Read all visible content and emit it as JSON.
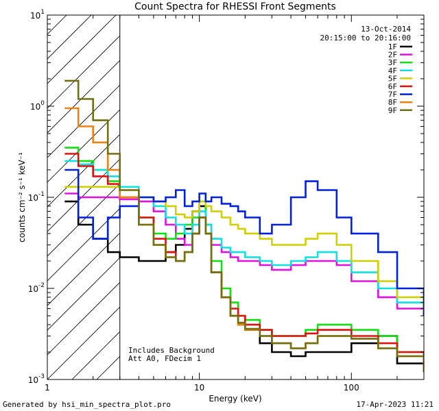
{
  "chart_data": {
    "type": "line",
    "title": "Count Spectra for RHESSI Front Segments",
    "xlabel": "Energy (keV)",
    "ylabel": "counts cm⁻² s⁻¹ keV⁻¹",
    "xscale": "log",
    "yscale": "log",
    "xlim": [
      1,
      300
    ],
    "ylim": [
      0.001,
      10
    ],
    "x_tick_labels": [
      {
        "value": 1,
        "label": "1"
      },
      {
        "value": 10,
        "label": "10"
      },
      {
        "value": 100,
        "label": "100"
      }
    ],
    "y_tick_labels": [
      {
        "value": 0.001,
        "base": "10",
        "exp": "-3"
      },
      {
        "value": 0.01,
        "base": "10",
        "exp": "-2"
      },
      {
        "value": 0.1,
        "base": "10",
        "exp": "-1"
      },
      {
        "value": 1,
        "base": "10",
        "exp": "0"
      },
      {
        "value": 10,
        "base": "10",
        "exp": "1"
      }
    ],
    "hatched_region": {
      "xmin": 1.0,
      "xmax": 3.0,
      "meaning": "excluded low-energy region"
    },
    "header_lines": [
      "13-Oct-2014",
      "20:15:00 to 20:16:00"
    ],
    "annotations": [
      "Includes Background",
      "Att A0, FDecim 1"
    ],
    "legend_position": "top-right",
    "series": [
      {
        "name": "1F",
        "color": "#000000",
        "x": [
          1.3,
          1.6,
          2,
          2.5,
          3,
          4,
          5,
          6,
          7,
          8,
          9,
          10,
          11,
          12,
          14,
          16,
          18,
          20,
          25,
          30,
          40,
          50,
          60,
          80,
          100,
          150,
          200,
          300
        ],
        "values": [
          0.09,
          0.05,
          0.035,
          0.025,
          0.022,
          0.02,
          0.02,
          0.025,
          0.03,
          0.045,
          0.07,
          0.08,
          0.04,
          0.015,
          0.008,
          0.005,
          0.004,
          0.0035,
          0.0025,
          0.002,
          0.0018,
          0.002,
          0.002,
          0.002,
          0.0025,
          0.003,
          0.0015,
          0.0012
        ]
      },
      {
        "name": "2F",
        "color": "#e010e0",
        "x": [
          1.3,
          1.6,
          2,
          2.5,
          3,
          4,
          5,
          6,
          7,
          8,
          9,
          10,
          11,
          12,
          14,
          16,
          18,
          20,
          25,
          30,
          40,
          50,
          60,
          80,
          100,
          150,
          200,
          300
        ],
        "values": [
          0.11,
          0.1,
          0.1,
          0.1,
          0.095,
          0.09,
          0.07,
          0.05,
          0.035,
          0.03,
          0.04,
          0.06,
          0.05,
          0.03,
          0.025,
          0.022,
          0.02,
          0.02,
          0.018,
          0.016,
          0.018,
          0.02,
          0.02,
          0.018,
          0.012,
          0.008,
          0.006,
          0.005
        ]
      },
      {
        "name": "3F",
        "color": "#10e010",
        "x": [
          1.3,
          1.6,
          2,
          2.5,
          3,
          4,
          5,
          6,
          7,
          8,
          9,
          10,
          11,
          12,
          14,
          16,
          18,
          20,
          25,
          30,
          40,
          50,
          60,
          80,
          100,
          150,
          200,
          300
        ],
        "values": [
          0.35,
          0.25,
          0.2,
          0.15,
          0.1,
          0.06,
          0.04,
          0.035,
          0.04,
          0.05,
          0.06,
          0.09,
          0.05,
          0.02,
          0.01,
          0.007,
          0.005,
          0.0045,
          0.0035,
          0.003,
          0.003,
          0.0035,
          0.004,
          0.004,
          0.0035,
          0.003,
          0.002,
          0.0015
        ]
      },
      {
        "name": "4F",
        "color": "#10e0e0",
        "x": [
          1.3,
          1.6,
          2,
          2.5,
          3,
          4,
          5,
          6,
          7,
          8,
          9,
          10,
          11,
          12,
          14,
          16,
          18,
          20,
          25,
          30,
          40,
          50,
          60,
          80,
          100,
          150,
          200,
          300
        ],
        "values": [
          0.25,
          0.23,
          0.2,
          0.17,
          0.13,
          0.1,
          0.08,
          0.06,
          0.05,
          0.04,
          0.05,
          0.07,
          0.05,
          0.035,
          0.028,
          0.025,
          0.025,
          0.022,
          0.02,
          0.018,
          0.02,
          0.022,
          0.025,
          0.02,
          0.015,
          0.01,
          0.007,
          0.006
        ]
      },
      {
        "name": "5F",
        "color": "#d0d000",
        "x": [
          1.3,
          1.6,
          2,
          2.5,
          3,
          4,
          5,
          6,
          7,
          8,
          9,
          10,
          11,
          12,
          14,
          16,
          18,
          20,
          25,
          30,
          40,
          50,
          60,
          80,
          100,
          150,
          200,
          300
        ],
        "values": [
          0.13,
          0.13,
          0.13,
          0.13,
          0.12,
          0.1,
          0.09,
          0.08,
          0.065,
          0.06,
          0.07,
          0.09,
          0.08,
          0.07,
          0.06,
          0.05,
          0.045,
          0.04,
          0.035,
          0.03,
          0.03,
          0.035,
          0.04,
          0.03,
          0.02,
          0.012,
          0.008,
          0.006
        ]
      },
      {
        "name": "6F",
        "color": "#e01010",
        "x": [
          1.3,
          1.6,
          2,
          2.5,
          3,
          4,
          5,
          6,
          7,
          8,
          9,
          10,
          11,
          12,
          14,
          16,
          18,
          20,
          25,
          30,
          40,
          50,
          60,
          80,
          100,
          150,
          200,
          300
        ],
        "values": [
          0.3,
          0.22,
          0.17,
          0.14,
          0.1,
          0.06,
          0.035,
          0.025,
          0.02,
          0.025,
          0.04,
          0.06,
          0.04,
          0.015,
          0.008,
          0.006,
          0.005,
          0.004,
          0.0035,
          0.003,
          0.003,
          0.0032,
          0.0035,
          0.0035,
          0.003,
          0.0025,
          0.002,
          0.0015
        ]
      },
      {
        "name": "7F",
        "color": "#0020e0",
        "x": [
          1.3,
          1.6,
          2,
          2.5,
          3,
          4,
          5,
          6,
          7,
          8,
          9,
          10,
          11,
          12,
          14,
          16,
          18,
          20,
          25,
          30,
          40,
          50,
          60,
          80,
          100,
          150,
          200,
          300
        ],
        "values": [
          0.2,
          0.06,
          0.035,
          0.06,
          0.08,
          0.1,
          0.09,
          0.1,
          0.12,
          0.08,
          0.09,
          0.11,
          0.09,
          0.1,
          0.085,
          0.08,
          0.07,
          0.06,
          0.04,
          0.05,
          0.1,
          0.15,
          0.12,
          0.06,
          0.04,
          0.025,
          0.01,
          0.005
        ]
      },
      {
        "name": "8F",
        "color": "#f08010",
        "x": [
          1.3,
          1.6,
          2,
          2.5,
          3,
          4,
          5,
          6,
          7,
          8,
          9,
          10,
          11,
          12,
          14,
          16,
          18,
          20,
          25,
          30,
          40,
          50,
          60,
          80,
          100,
          150,
          200,
          300
        ],
        "values": [
          0.95,
          0.6,
          0.4,
          0.2,
          0.1,
          0.05,
          0.03,
          0.022,
          0.02,
          0.025,
          0.04,
          0.06,
          0.04,
          0.015,
          0.008,
          0.005,
          0.004,
          0.0035,
          0.003,
          0.0025,
          0.0022,
          0.0025,
          0.003,
          0.003,
          0.0028,
          0.0022,
          0.0018,
          0.0012
        ]
      },
      {
        "name": "9F",
        "color": "#707010",
        "x": [
          1.3,
          1.6,
          2,
          2.5,
          3,
          4,
          5,
          6,
          7,
          8,
          9,
          10,
          11,
          12,
          14,
          16,
          18,
          20,
          25,
          30,
          40,
          50,
          60,
          80,
          100,
          150,
          200,
          300
        ],
        "values": [
          1.9,
          1.2,
          0.7,
          0.3,
          0.12,
          0.05,
          0.03,
          0.022,
          0.02,
          0.025,
          0.04,
          0.06,
          0.04,
          0.015,
          0.008,
          0.005,
          0.0042,
          0.0036,
          0.003,
          0.0025,
          0.0022,
          0.0025,
          0.003,
          0.003,
          0.0028,
          0.0022,
          0.0018,
          0.0012
        ]
      }
    ]
  },
  "footer": {
    "left": "Generated by hsi_min_spectra_plot.pro",
    "right": "17-Apr-2023 11:21"
  }
}
